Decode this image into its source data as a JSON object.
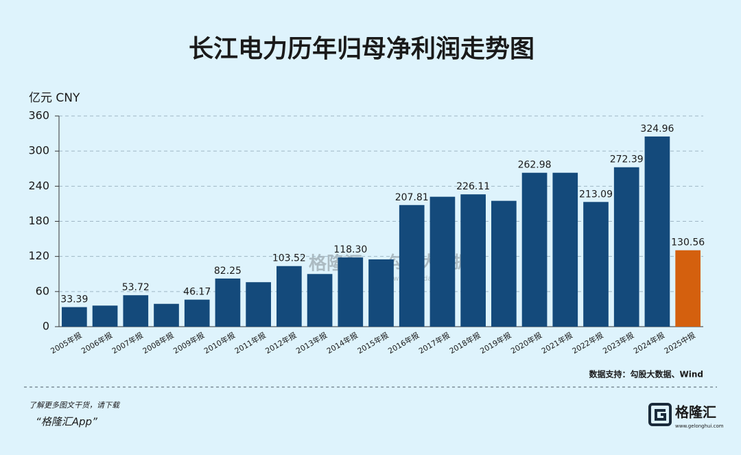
{
  "chart_data": {
    "type": "bar",
    "title": "长江电力历年归母净利润走势图",
    "y_label": "亿元  CNY",
    "categories": [
      "2005年报",
      "2006年报",
      "2007年报",
      "2008年报",
      "2009年报",
      "2010年报",
      "2011年报",
      "2012年报",
      "2013年报",
      "2014年报",
      "2015年报",
      "2016年报",
      "2017年报",
      "2018年报",
      "2019年报",
      "2020年报",
      "2021年报",
      "2022年报",
      "2023年报",
      "2024年报",
      "2025中报"
    ],
    "values": [
      33.39,
      36,
      53.72,
      39,
      46.17,
      82.25,
      76,
      103.52,
      90,
      118.3,
      115,
      207.81,
      222,
      226.11,
      215,
      262.98,
      263,
      213.09,
      272.39,
      324.96,
      130.56
    ],
    "value_labels": [
      "33.39",
      null,
      "53.72",
      null,
      "46.17",
      "82.25",
      null,
      "103.52",
      null,
      "118.30",
      null,
      "207.81",
      null,
      "226.11",
      null,
      "262.98",
      null,
      "213.09",
      "272.39",
      "324.96",
      "130.56"
    ],
    "colors": [
      "#144a7b",
      "#144a7b",
      "#144a7b",
      "#144a7b",
      "#144a7b",
      "#144a7b",
      "#144a7b",
      "#144a7b",
      "#144a7b",
      "#144a7b",
      "#144a7b",
      "#144a7b",
      "#144a7b",
      "#144a7b",
      "#144a7b",
      "#144a7b",
      "#144a7b",
      "#144a7b",
      "#144a7b",
      "#144a7b",
      "#d4600e"
    ],
    "ylim": [
      0,
      360
    ],
    "yticks": [
      0,
      60,
      120,
      180,
      240,
      300,
      360
    ],
    "grid": true,
    "source": "数据支持：勾股大数据、Wind"
  },
  "watermark": {
    "brand": "格隆汇",
    "name": "勾股大数据",
    "url": "www.gogudata.com"
  },
  "footer": {
    "line1": "了解更多图文干货，请下载",
    "line2": "“格隆汇App”",
    "logo": "格隆汇",
    "logo_url": "www.gelonghui.com"
  }
}
